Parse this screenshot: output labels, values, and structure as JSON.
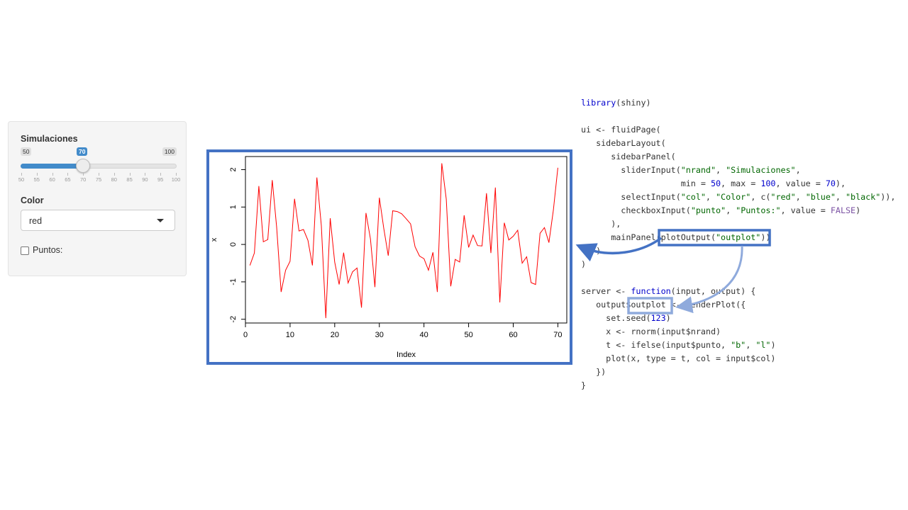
{
  "sidebar": {
    "slider": {
      "label": "Simulaciones",
      "min": 50,
      "max": 100,
      "value": 70,
      "min_label": "50",
      "max_label": "100",
      "value_label": "70",
      "ticks": [
        "50",
        "55",
        "60",
        "65",
        "70",
        "75",
        "80",
        "85",
        "90",
        "95",
        "100"
      ]
    },
    "select": {
      "label": "Color",
      "value": "red"
    },
    "checkbox": {
      "label": "Puntos:",
      "checked": false
    }
  },
  "chart_data": {
    "type": "line",
    "xlabel": "Index",
    "ylabel": "x",
    "xlim": [
      0,
      72
    ],
    "ylim": [
      -2.1,
      2.35
    ],
    "x_ticks": [
      0,
      10,
      20,
      30,
      40,
      50,
      60,
      70
    ],
    "y_ticks": [
      -2,
      -1,
      0,
      1,
      2
    ],
    "line_color": "#ff0000",
    "series": [
      {
        "values": [
          -0.56,
          -0.23,
          1.56,
          0.07,
          0.13,
          1.72,
          0.46,
          -1.27,
          -0.69,
          -0.45,
          1.22,
          0.36,
          0.4,
          0.11,
          -0.56,
          1.79,
          0.5,
          -1.97,
          0.7,
          -0.47,
          -1.07,
          -0.22,
          -1.03,
          -0.73,
          -0.63,
          -1.69,
          0.84,
          0.15,
          -1.14,
          1.25,
          0.43,
          -0.3,
          0.9,
          0.88,
          0.82,
          0.69,
          0.55,
          -0.06,
          -0.31,
          -0.38,
          -0.69,
          -0.21,
          -1.27,
          2.17,
          1.21,
          -1.12,
          -0.4,
          -0.47,
          0.78,
          -0.08,
          0.25,
          -0.03,
          -0.04,
          1.37,
          -0.23,
          1.52,
          -1.55,
          0.58,
          0.12,
          0.22,
          0.38,
          -0.5,
          -0.33,
          -1.02,
          -1.07,
          0.3,
          0.45,
          0.05,
          0.92,
          2.05
        ]
      }
    ]
  },
  "code": {
    "lines": [
      "library(shiny)",
      "",
      "ui <- fluidPage(",
      "   sidebarLayout(",
      "      sidebarPanel(",
      "        sliderInput(\"nrand\", \"Simulaciones\",",
      "                    min = 50, max = 100, value = 70),",
      "        selectInput(\"col\", \"Color\", c(\"red\", \"blue\", \"black\")),",
      "        checkboxInput(\"punto\", \"Puntos:\", value = FALSE)",
      "      ),",
      "      mainPanel(plotOutput(\"outplot\"))",
      "   )",
      ")",
      "",
      "server <- function(input, output) {",
      "   output$outplot <- renderPlot({",
      "     set.seed(123)",
      "     x <- rnorm(input$nrand)",
      "     t <- ifelse(input$punto, \"b\", \"l\")",
      "     plot(x, type = t, col = input$col)",
      "   })",
      "}"
    ]
  },
  "colors": {
    "accent": "#4472c4",
    "accent_light": "#8faadc",
    "slider": "#428bca",
    "keyword": "#0000cc",
    "string": "#006600",
    "constant": "#7b52a3"
  }
}
